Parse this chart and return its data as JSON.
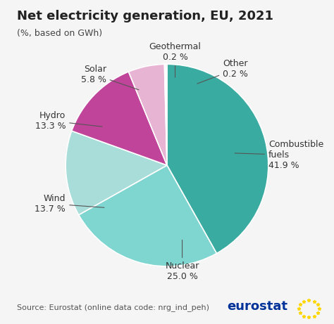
{
  "title": "Net electricity generation, EU, 2021",
  "subtitle": "(%, based on GWh)",
  "source": "Source: Eurostat (online data code: nrg_ind_peh)",
  "slices": [
    {
      "label": "Combustible\nfuels",
      "value": 41.9,
      "color": "#3aaba0"
    },
    {
      "label": "Nuclear",
      "value": 25.0,
      "color": "#7fd6d0"
    },
    {
      "label": "Wind",
      "value": 13.7,
      "color": "#a8ddd9"
    },
    {
      "label": "Hydro",
      "value": 13.3,
      "color": "#c0449a"
    },
    {
      "label": "Solar",
      "value": 5.8,
      "color": "#e8b4d4"
    },
    {
      "label": "Geothermal",
      "value": 0.2,
      "color": "#6a8abf"
    },
    {
      "label": "Other",
      "value": 0.2,
      "color": "#4a72a8"
    }
  ],
  "background_color": "#f5f5f5",
  "title_fontsize": 13,
  "subtitle_fontsize": 9,
  "label_fontsize": 9,
  "source_fontsize": 8
}
